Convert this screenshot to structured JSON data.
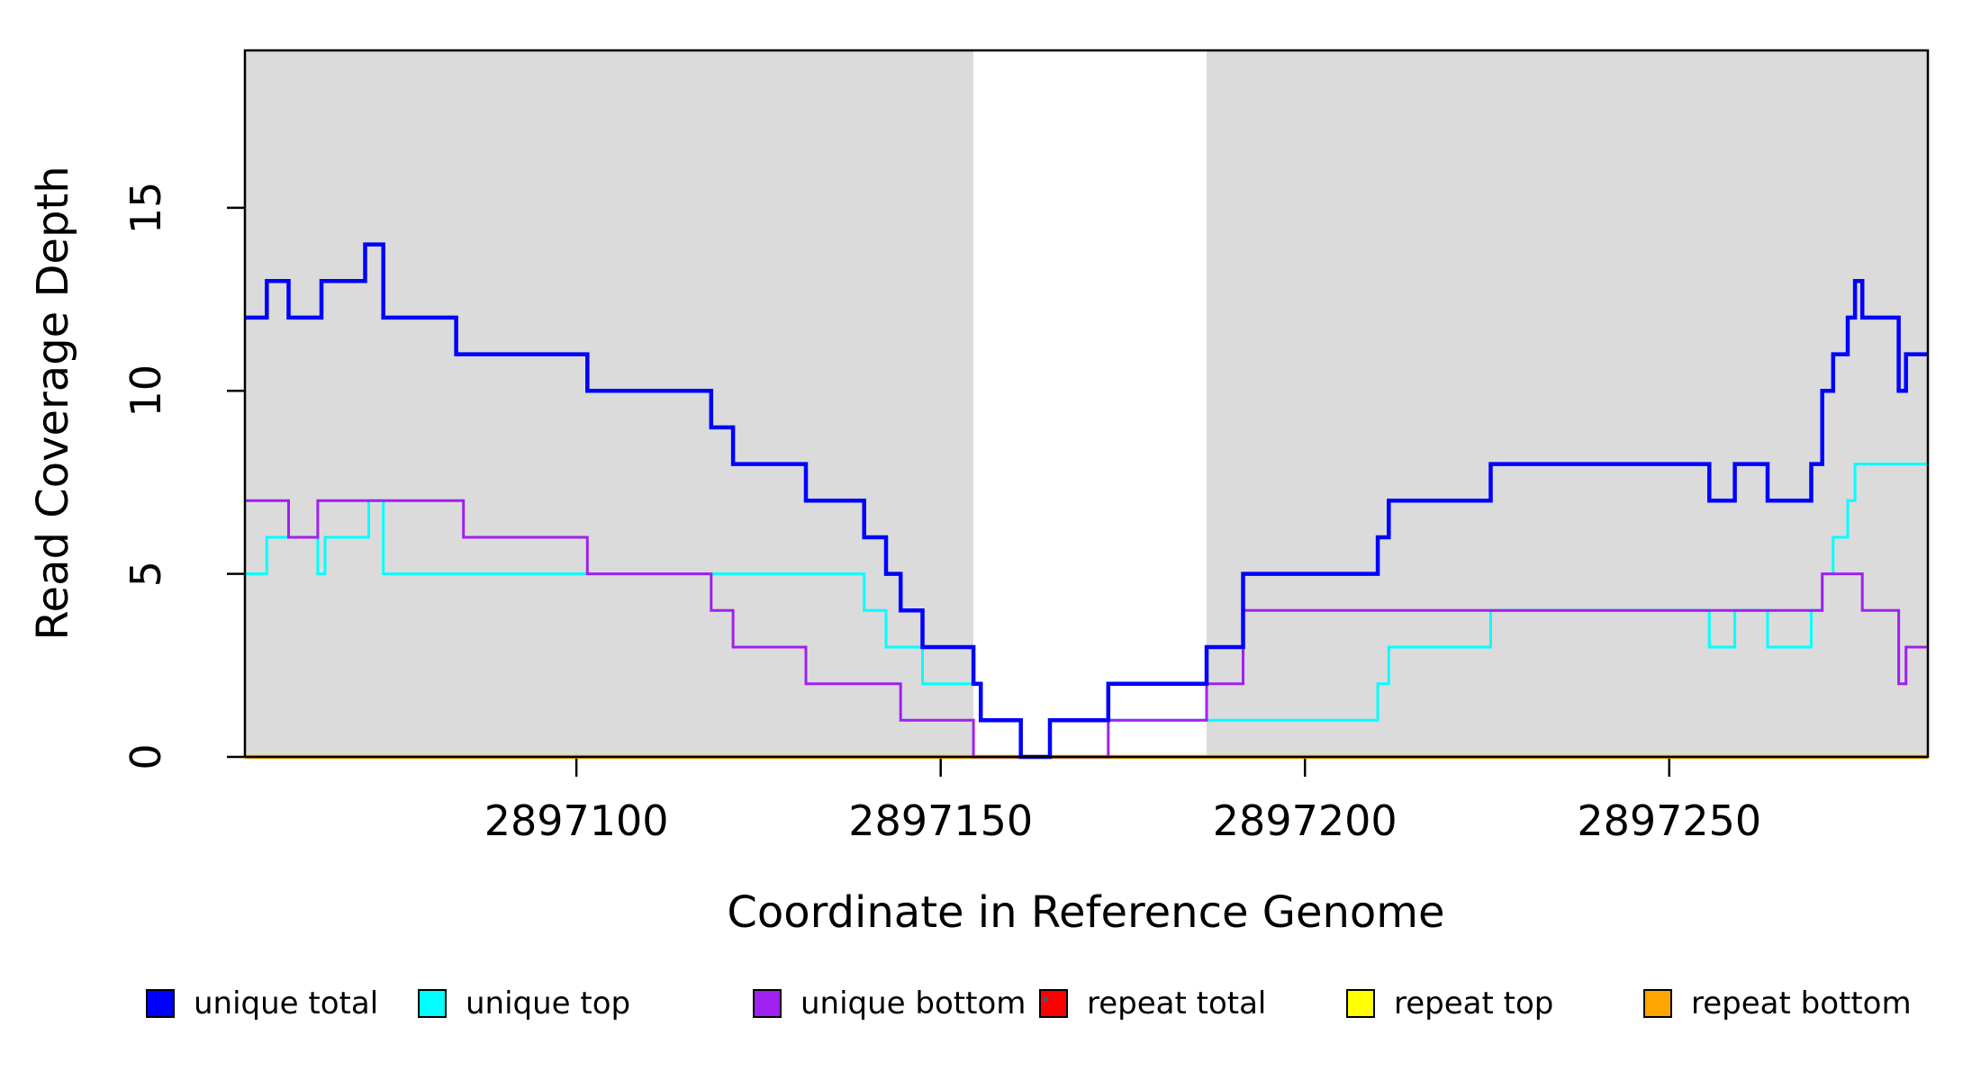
{
  "chart_data": {
    "type": "line",
    "subtype": "step-coverage",
    "title": "",
    "xlabel": "Coordinate in Reference Genome",
    "ylabel": "Read Coverage Depth",
    "xlim": [
      2897054.5,
      2897285.5
    ],
    "ylim": [
      0,
      19.3
    ],
    "x_ticks": [
      2897100,
      2897150,
      2897200,
      2897250
    ],
    "x_tick_labels": [
      "2897100",
      "2897150",
      "2897200",
      "2897250"
    ],
    "y_ticks": [
      0,
      5,
      10,
      15
    ],
    "y_tick_labels": [
      "0",
      "5",
      "10",
      "15"
    ],
    "grid": "off",
    "legend_position": "bottom",
    "band_color": "#DBDBDB",
    "shaded_regions": [
      {
        "x0": 2897054.5,
        "x1": 2897154.5
      },
      {
        "x0": 2897186.5,
        "x1": 2897285.5
      }
    ],
    "draw_order": [
      3,
      4,
      5,
      1,
      2,
      0
    ],
    "series": [
      {
        "name": "unique total",
        "color": "#0000FF",
        "width": 4.5,
        "steps": [
          [
            2897054.5,
            12
          ],
          [
            2897057.5,
            13
          ],
          [
            2897060.5,
            12
          ],
          [
            2897065,
            13
          ],
          [
            2897071,
            14
          ],
          [
            2897073.5,
            12
          ],
          [
            2897083.5,
            11
          ],
          [
            2897101.5,
            10
          ],
          [
            2897118.5,
            9
          ],
          [
            2897121.5,
            8
          ],
          [
            2897131.5,
            7
          ],
          [
            2897139.5,
            6
          ],
          [
            2897142.5,
            5
          ],
          [
            2897144.5,
            4
          ],
          [
            2897147.5,
            3
          ],
          [
            2897154.5,
            2
          ],
          [
            2897155.5,
            1
          ],
          [
            2897161,
            0
          ],
          [
            2897165,
            1
          ],
          [
            2897173,
            2
          ],
          [
            2897186.5,
            3
          ],
          [
            2897191.5,
            5
          ],
          [
            2897210,
            6
          ],
          [
            2897211.5,
            7
          ],
          [
            2897225.5,
            8
          ],
          [
            2897255.5,
            7
          ],
          [
            2897259,
            8
          ],
          [
            2897263.5,
            7
          ],
          [
            2897269.5,
            8
          ],
          [
            2897271,
            10
          ],
          [
            2897272.5,
            11
          ],
          [
            2897274.5,
            12
          ],
          [
            2897275.5,
            13
          ],
          [
            2897276.5,
            12
          ],
          [
            2897281.5,
            10
          ],
          [
            2897282.5,
            11
          ],
          [
            2897285.5,
            11
          ]
        ]
      },
      {
        "name": "unique top",
        "color": "#00FFFF",
        "width": 3,
        "steps": [
          [
            2897054.5,
            5
          ],
          [
            2897057.5,
            6
          ],
          [
            2897064.5,
            5
          ],
          [
            2897065.5,
            6
          ],
          [
            2897071.5,
            7
          ],
          [
            2897073.5,
            5
          ],
          [
            2897139.5,
            4
          ],
          [
            2897142.5,
            3
          ],
          [
            2897147.5,
            2
          ],
          [
            2897155.5,
            1
          ],
          [
            2897161,
            0
          ],
          [
            2897165,
            1
          ],
          [
            2897210,
            2
          ],
          [
            2897211.5,
            3
          ],
          [
            2897225.5,
            4
          ],
          [
            2897255.5,
            3
          ],
          [
            2897259,
            4
          ],
          [
            2897263.5,
            3
          ],
          [
            2897269.5,
            4
          ],
          [
            2897271,
            5
          ],
          [
            2897272.5,
            6
          ],
          [
            2897274.5,
            7
          ],
          [
            2897275.5,
            8
          ],
          [
            2897285.5,
            8
          ]
        ]
      },
      {
        "name": "unique bottom",
        "color": "#A020F0",
        "width": 3,
        "steps": [
          [
            2897054.5,
            7
          ],
          [
            2897060.5,
            6
          ],
          [
            2897064.5,
            7
          ],
          [
            2897084.5,
            6
          ],
          [
            2897101.5,
            5
          ],
          [
            2897118.5,
            4
          ],
          [
            2897121.5,
            3
          ],
          [
            2897131.5,
            2
          ],
          [
            2897144.5,
            1
          ],
          [
            2897154.5,
            0
          ],
          [
            2897173,
            1
          ],
          [
            2897186.5,
            2
          ],
          [
            2897191.5,
            4
          ],
          [
            2897271,
            5
          ],
          [
            2897276.5,
            4
          ],
          [
            2897281.5,
            2
          ],
          [
            2897282.5,
            3
          ],
          [
            2897285.5,
            3
          ]
        ]
      },
      {
        "name": "repeat total",
        "color": "#FF0000",
        "width": 3,
        "steps": [
          [
            2897054.5,
            0
          ],
          [
            2897285.5,
            0
          ]
        ]
      },
      {
        "name": "repeat top",
        "color": "#FFFF00",
        "width": 3,
        "steps": [
          [
            2897054.5,
            0
          ],
          [
            2897285.5,
            0
          ]
        ]
      },
      {
        "name": "repeat bottom",
        "color": "#FFA500",
        "width": 4.5,
        "steps": [
          [
            2897054.5,
            0
          ],
          [
            2897285.5,
            0
          ]
        ]
      }
    ]
  },
  "legend": {
    "items": [
      {
        "label": "unique total",
        "color": "#0000FF"
      },
      {
        "label": "unique top",
        "color": "#00FFFF"
      },
      {
        "label": "unique bottom",
        "color": "#A020F0"
      },
      {
        "label": "repeat total",
        "color": "#FF0000"
      },
      {
        "label": "repeat top",
        "color": "#FFFF00"
      },
      {
        "label": "repeat bottom",
        "color": "#FFA500"
      }
    ]
  }
}
